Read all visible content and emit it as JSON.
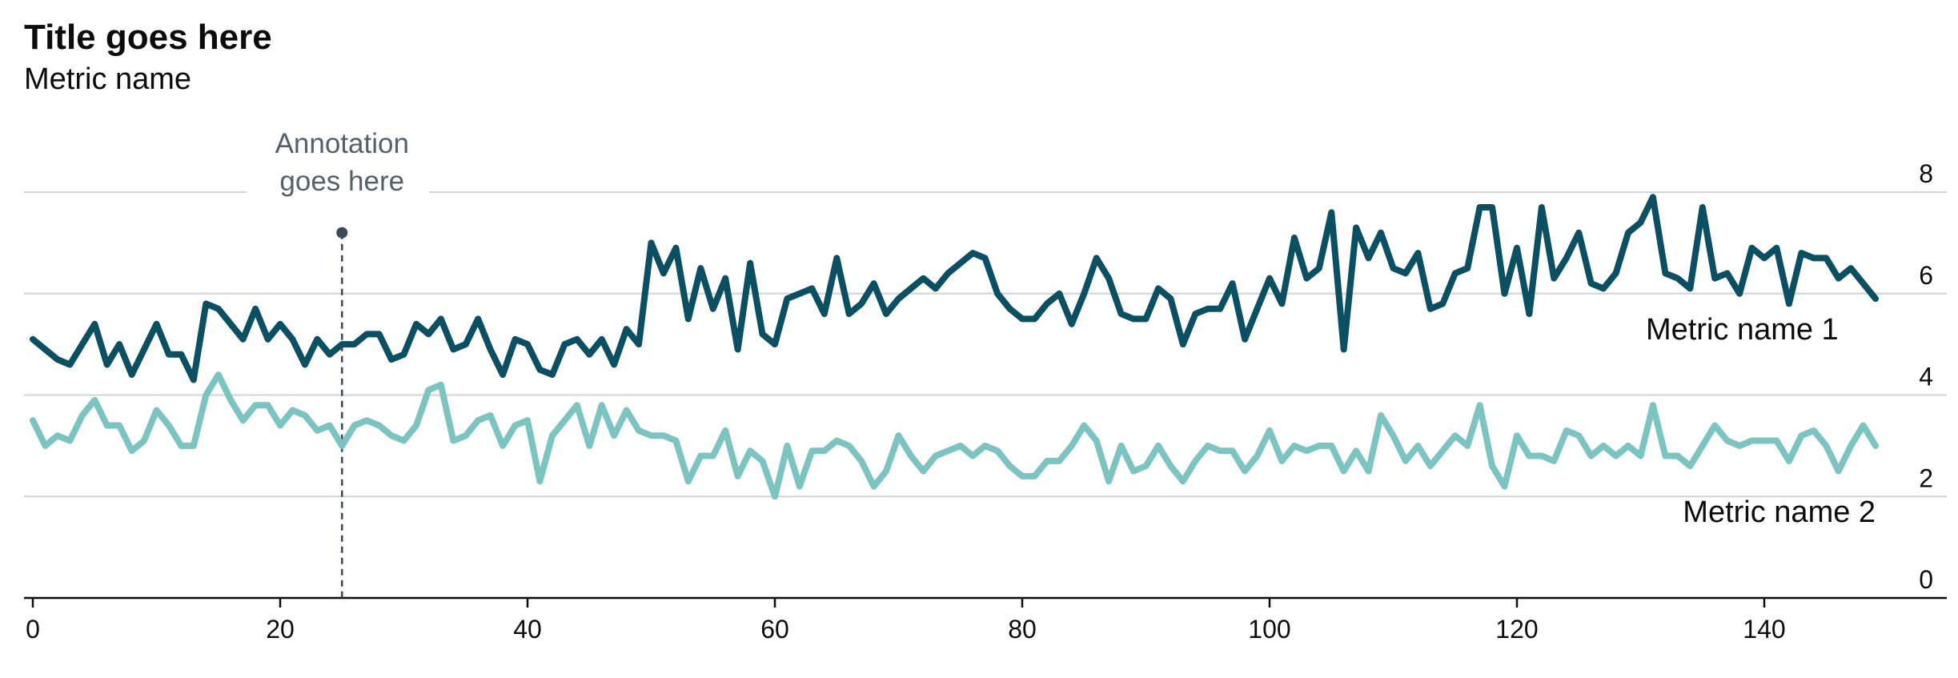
{
  "chart_data": {
    "type": "line",
    "title": "Title goes here",
    "subtitle": "Metric name",
    "xlabel": "",
    "ylabel": "",
    "xlim": [
      -0.5,
      154
    ],
    "ylim": [
      0,
      8
    ],
    "x_ticks": [
      0,
      20,
      40,
      60,
      80,
      100,
      120,
      140
    ],
    "y_ticks": [
      0,
      2,
      4,
      6,
      8
    ],
    "grid": "horizontal",
    "colors": {
      "series1": "#0b4f63",
      "series2": "#7cc4c1",
      "grid": "#cfd3d6",
      "axis": "#0c0c0c",
      "annotation": "#3b4a5a"
    },
    "annotation": {
      "x": 25,
      "y": 7.2,
      "lines": [
        "Annotation",
        "goes here"
      ]
    },
    "series": [
      {
        "name": "Metric name 1",
        "color": "#0b4f63",
        "values": [
          5.1,
          4.9,
          4.7,
          4.6,
          5.0,
          5.4,
          4.6,
          5.0,
          4.4,
          4.9,
          5.4,
          4.8,
          4.8,
          4.3,
          5.8,
          5.7,
          5.4,
          5.1,
          5.7,
          5.1,
          5.4,
          5.1,
          4.6,
          5.1,
          4.8,
          5.0,
          5.0,
          5.2,
          5.2,
          4.7,
          4.8,
          5.4,
          5.2,
          5.5,
          4.9,
          5.0,
          5.5,
          4.9,
          4.4,
          5.1,
          5.0,
          4.5,
          4.4,
          5.0,
          5.1,
          4.8,
          5.1,
          4.6,
          5.3,
          5.0,
          7.0,
          6.4,
          6.9,
          5.5,
          6.5,
          5.7,
          6.3,
          4.9,
          6.6,
          5.2,
          5.0,
          5.9,
          6.0,
          6.1,
          5.6,
          6.7,
          5.6,
          5.8,
          6.2,
          5.6,
          5.9,
          6.1,
          6.3,
          6.1,
          6.4,
          6.6,
          6.8,
          6.7,
          6.0,
          5.7,
          5.5,
          5.5,
          5.8,
          6.0,
          5.4,
          6.0,
          6.7,
          6.3,
          5.6,
          5.5,
          5.5,
          6.1,
          5.9,
          5.0,
          5.6,
          5.7,
          5.7,
          6.2,
          5.1,
          5.7,
          6.3,
          5.8,
          7.1,
          6.3,
          6.5,
          7.6,
          4.9,
          7.3,
          6.7,
          7.2,
          6.5,
          6.4,
          6.8,
          5.7,
          5.8,
          6.4,
          6.5,
          7.7,
          7.7,
          6.0,
          6.9,
          5.6,
          7.7,
          6.3,
          6.7,
          7.2,
          6.2,
          6.1,
          6.4,
          7.2,
          7.4,
          7.9,
          6.4,
          6.3,
          6.1,
          7.7,
          6.3,
          6.4,
          6.0,
          6.9,
          6.7,
          6.9,
          5.8,
          6.8,
          6.7,
          6.7,
          6.3,
          6.5,
          6.2,
          5.9
        ]
      },
      {
        "name": "Metric name 2",
        "color": "#7cc4c1",
        "values": [
          3.5,
          3.0,
          3.2,
          3.1,
          3.6,
          3.9,
          3.4,
          3.4,
          2.9,
          3.1,
          3.7,
          3.4,
          3.0,
          3.0,
          4.0,
          4.4,
          3.9,
          3.5,
          3.8,
          3.8,
          3.4,
          3.7,
          3.6,
          3.3,
          3.4,
          3.0,
          3.4,
          3.5,
          3.4,
          3.2,
          3.1,
          3.4,
          4.1,
          4.2,
          3.1,
          3.2,
          3.5,
          3.6,
          3.0,
          3.4,
          3.5,
          2.3,
          3.2,
          3.5,
          3.8,
          3.0,
          3.8,
          3.2,
          3.7,
          3.3,
          3.2,
          3.2,
          3.1,
          2.3,
          2.8,
          2.8,
          3.3,
          2.4,
          2.9,
          2.7,
          2.0,
          3.0,
          2.2,
          2.9,
          2.9,
          3.1,
          3.0,
          2.7,
          2.2,
          2.5,
          3.2,
          2.8,
          2.5,
          2.8,
          2.9,
          3.0,
          2.8,
          3.0,
          2.9,
          2.6,
          2.4,
          2.4,
          2.7,
          2.7,
          3.0,
          3.4,
          3.1,
          2.3,
          3.0,
          2.5,
          2.6,
          3.0,
          2.6,
          2.3,
          2.7,
          3.0,
          2.9,
          2.9,
          2.5,
          2.8,
          3.3,
          2.7,
          3.0,
          2.9,
          3.0,
          3.0,
          2.5,
          2.9,
          2.5,
          3.6,
          3.2,
          2.7,
          3.0,
          2.6,
          2.9,
          3.2,
          3.0,
          3.8,
          2.6,
          2.2,
          3.2,
          2.8,
          2.8,
          2.7,
          3.3,
          3.2,
          2.8,
          3.0,
          2.8,
          3.0,
          2.8,
          3.8,
          2.8,
          2.8,
          2.6,
          3.0,
          3.4,
          3.1,
          3.0,
          3.1,
          3.1,
          3.1,
          2.7,
          3.2,
          3.3,
          3.0,
          2.5,
          3.0,
          3.4,
          3.0
        ]
      }
    ],
    "series_labels": [
      {
        "text": "Metric name 1",
        "anchor": "end",
        "at_x": 146,
        "at_y": 5.1
      },
      {
        "text": "Metric name 2",
        "anchor": "end",
        "at_x": 149,
        "at_y": 1.5
      }
    ]
  }
}
